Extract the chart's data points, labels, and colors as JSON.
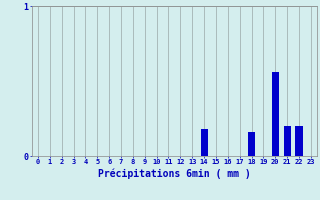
{
  "title": "",
  "xlabel": "Précipitations 6min ( mm )",
  "ylabel": "",
  "background_color": "#d4eeee",
  "bar_color": "#0000cc",
  "grid_color": "#aabbbb",
  "text_color": "#0000bb",
  "ylim": [
    0,
    1.0
  ],
  "yticks": [
    0,
    1
  ],
  "xlim": [
    -0.5,
    23.5
  ],
  "xticks": [
    0,
    1,
    2,
    3,
    4,
    5,
    6,
    7,
    8,
    9,
    10,
    11,
    12,
    13,
    14,
    15,
    16,
    17,
    18,
    19,
    20,
    21,
    22,
    23
  ],
  "categories": [
    0,
    1,
    2,
    3,
    4,
    5,
    6,
    7,
    8,
    9,
    10,
    11,
    12,
    13,
    14,
    15,
    16,
    17,
    18,
    19,
    20,
    21,
    22,
    23
  ],
  "values": [
    0,
    0,
    0,
    0,
    0,
    0,
    0,
    0,
    0,
    0,
    0,
    0,
    0,
    0,
    0.18,
    0,
    0,
    0,
    0.16,
    0,
    0.56,
    0.2,
    0.2,
    0
  ]
}
